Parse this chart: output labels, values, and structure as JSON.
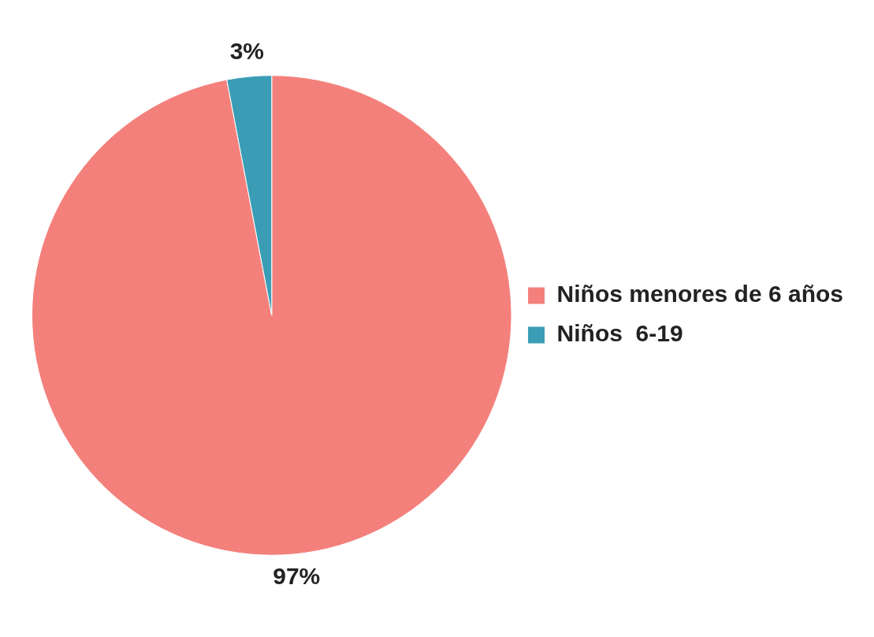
{
  "chart_data": {
    "type": "pie",
    "categories": [
      "Niños menores de 6 años",
      "Niños  6-19"
    ],
    "values": [
      97,
      3
    ],
    "colors": [
      "#f4807c",
      "#3a9db5"
    ],
    "value_labels": [
      "97%",
      "3%"
    ],
    "legend": "right"
  }
}
